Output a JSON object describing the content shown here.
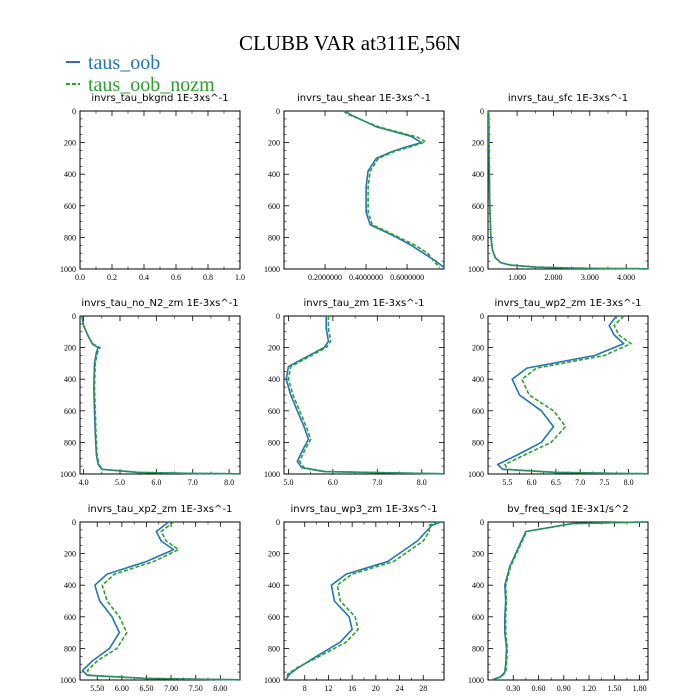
{
  "figure": {
    "title": "CLUBB VAR at311E,56N",
    "legend": [
      {
        "name": "taus_oob",
        "color": "#1f77b4"
      },
      {
        "name": "taus_oob_nozm",
        "color": "#2ca02c"
      }
    ],
    "line_style": [
      "solid",
      "dashed"
    ]
  },
  "chart_data": [
    {
      "type": "line",
      "title": "invrs_tau_bkgnd",
      "units": "1E-3xs^-1",
      "xlim": [
        0,
        1.0
      ],
      "ylim": [
        1000,
        0
      ],
      "xticks": [
        0.0,
        0.2,
        0.4,
        0.6,
        0.8,
        1.0
      ],
      "xtick_labels": [
        "0.0",
        "0.2",
        "0.4",
        "0.6",
        "0.8",
        "1.0"
      ],
      "yticks": [
        0,
        200,
        400,
        600,
        800,
        1000
      ],
      "ytick_labels": [
        "0",
        "200",
        "400",
        "600",
        "800",
        "1000"
      ],
      "series": []
    },
    {
      "type": "line",
      "title": "invrs_tau_shear",
      "units": "1E-3xs^-1",
      "xlim": [
        0,
        0.78
      ],
      "ylim": [
        1000,
        0
      ],
      "xticks": [
        0.2,
        0.4,
        0.6
      ],
      "xtick_labels": [
        "0.2000000",
        "0.4000000",
        "0.6000000"
      ],
      "yticks": [
        0,
        200,
        400,
        600,
        800,
        1000
      ],
      "ytick_labels": [
        "0",
        "200",
        "400",
        "600",
        "800",
        "1000"
      ],
      "series": [
        {
          "x": [
            0.3,
            0.32,
            0.45,
            0.62,
            0.67,
            0.59,
            0.52,
            0.45,
            0.41,
            0.4,
            0.4,
            0.4,
            0.41,
            0.42,
            0.47,
            0.55,
            0.62,
            0.68,
            0.74,
            0.78
          ],
          "y": [
            0,
            20,
            100,
            160,
            200,
            230,
            260,
            300,
            380,
            480,
            580,
            640,
            680,
            720,
            750,
            800,
            850,
            900,
            950,
            990
          ]
        },
        {
          "x": [
            0.29,
            0.31,
            0.46,
            0.65,
            0.69,
            0.62,
            0.54,
            0.46,
            0.42,
            0.41,
            0.41,
            0.41,
            0.42,
            0.43,
            0.48,
            0.56,
            0.64,
            0.7,
            0.73,
            0.76
          ],
          "y": [
            0,
            20,
            100,
            165,
            195,
            225,
            255,
            300,
            380,
            480,
            580,
            640,
            680,
            720,
            750,
            800,
            850,
            900,
            950,
            990
          ]
        }
      ]
    },
    {
      "type": "line",
      "title": "invrs_tau_sfc",
      "units": "1E-3xs^-1",
      "xlim": [
        0.2,
        4.6
      ],
      "ylim": [
        1000,
        0
      ],
      "xticks": [
        1.0,
        2.0,
        3.0,
        4.0
      ],
      "xtick_labels": [
        "1.000",
        "2.000",
        "3.000",
        "4.000"
      ],
      "yticks": [
        0,
        200,
        400,
        600,
        800,
        1000
      ],
      "ytick_labels": [
        "0",
        "200",
        "400",
        "600",
        "800",
        "1000"
      ],
      "series": [
        {
          "x": [
            0.22,
            0.23,
            0.25,
            0.28,
            0.32,
            0.4,
            0.55,
            0.8,
            1.5,
            2.5,
            3.5,
            4.6
          ],
          "y": [
            0,
            300,
            600,
            800,
            880,
            930,
            960,
            975,
            988,
            994,
            997,
            999
          ]
        },
        {
          "x": [
            0.22,
            0.23,
            0.25,
            0.28,
            0.33,
            0.41,
            0.56,
            0.82,
            1.5,
            2.5,
            3.5,
            4.6
          ],
          "y": [
            0,
            300,
            600,
            800,
            880,
            930,
            960,
            975,
            988,
            994,
            997,
            999
          ]
        }
      ]
    },
    {
      "type": "line",
      "title": "invrs_tau_no_N2_zm",
      "units": "1E-3xs^-1",
      "xlim": [
        3.9,
        8.3
      ],
      "ylim": [
        1000,
        0
      ],
      "xticks": [
        4.0,
        5.0,
        6.0,
        7.0,
        8.0
      ],
      "xtick_labels": [
        "4.0",
        "5.0",
        "6.0",
        "7.0",
        "8.0"
      ],
      "yticks": [
        0,
        200,
        400,
        600,
        800,
        1000
      ],
      "ytick_labels": [
        "0",
        "200",
        "400",
        "600",
        "800",
        "1000"
      ],
      "series": [
        {
          "x": [
            3.95,
            4.0,
            4.15,
            4.25,
            4.4,
            4.35,
            4.3,
            4.28,
            4.3,
            4.32,
            4.35,
            4.4,
            4.5,
            5.5,
            7.0,
            8.3
          ],
          "y": [
            0,
            60,
            140,
            180,
            200,
            230,
            300,
            450,
            600,
            750,
            880,
            940,
            970,
            990,
            996,
            999
          ]
        },
        {
          "x": [
            3.95,
            4.0,
            4.15,
            4.27,
            4.45,
            4.38,
            4.32,
            4.3,
            4.32,
            4.34,
            4.37,
            4.42,
            4.52,
            5.5,
            7.0,
            8.3
          ],
          "y": [
            0,
            60,
            140,
            180,
            200,
            230,
            300,
            450,
            600,
            750,
            880,
            940,
            970,
            990,
            996,
            999
          ]
        }
      ]
    },
    {
      "type": "line",
      "title": "invrs_tau_zm",
      "units": "1E-3xs^-1",
      "xlim": [
        4.9,
        8.5
      ],
      "ylim": [
        1000,
        0
      ],
      "xticks": [
        5.0,
        6.0,
        7.0,
        8.0
      ],
      "xtick_labels": [
        "5.0",
        "6.0",
        "7.0",
        "8.0"
      ],
      "yticks": [
        0,
        200,
        400,
        600,
        800,
        1000
      ],
      "ytick_labels": [
        "0",
        "200",
        "400",
        "600",
        "800",
        "1000"
      ],
      "series": [
        {
          "x": [
            5.85,
            5.85,
            5.9,
            5.8,
            5.4,
            5.0,
            4.95,
            5.05,
            5.2,
            5.35,
            5.45,
            5.3,
            5.2,
            5.3,
            5.8,
            8.5
          ],
          "y": [
            0,
            80,
            160,
            200,
            260,
            320,
            400,
            500,
            600,
            700,
            780,
            860,
            920,
            960,
            985,
            999
          ]
        },
        {
          "x": [
            5.9,
            5.9,
            5.95,
            5.85,
            5.45,
            5.05,
            5.0,
            5.1,
            5.25,
            5.4,
            5.5,
            5.35,
            5.25,
            5.35,
            5.85,
            8.5
          ],
          "y": [
            0,
            80,
            160,
            200,
            260,
            320,
            400,
            500,
            600,
            700,
            780,
            860,
            920,
            960,
            985,
            999
          ]
        }
      ]
    },
    {
      "type": "line",
      "title": "invrs_tau_wp2_zm",
      "units": "1E-3xs^-1",
      "xlim": [
        5.1,
        8.4
      ],
      "ylim": [
        1000,
        0
      ],
      "xticks": [
        5.5,
        6.0,
        6.5,
        7.0,
        7.5,
        8.0
      ],
      "xtick_labels": [
        "5.5",
        "6.0",
        "6.5",
        "7.0",
        "7.5",
        "8.0"
      ],
      "yticks": [
        0,
        200,
        400,
        600,
        800,
        1000
      ],
      "ytick_labels": [
        "0",
        "200",
        "400",
        "600",
        "800",
        "1000"
      ],
      "series": [
        {
          "x": [
            7.75,
            7.6,
            7.7,
            7.9,
            7.3,
            5.9,
            5.6,
            5.75,
            6.2,
            6.45,
            6.2,
            5.7,
            5.3,
            5.4,
            6.5,
            8.4
          ],
          "y": [
            0,
            60,
            120,
            175,
            250,
            330,
            400,
            500,
            600,
            700,
            800,
            880,
            940,
            970,
            990,
            999
          ]
        },
        {
          "x": [
            7.9,
            7.7,
            7.8,
            8.05,
            7.5,
            6.1,
            5.8,
            5.95,
            6.45,
            6.7,
            6.4,
            5.85,
            5.45,
            5.5,
            6.5,
            8.4
          ],
          "y": [
            0,
            60,
            120,
            175,
            250,
            330,
            400,
            500,
            600,
            700,
            800,
            880,
            940,
            970,
            990,
            999
          ]
        }
      ]
    },
    {
      "type": "line",
      "title": "invrs_tau_xp2_zm",
      "units": "1E-3xs^-1",
      "xlim": [
        5.15,
        8.4
      ],
      "ylim": [
        1000,
        0
      ],
      "xticks": [
        5.5,
        6.0,
        6.5,
        7.0,
        7.5,
        8.0
      ],
      "xtick_labels": [
        "5.50",
        "6.00",
        "6.50",
        "7.00",
        "7.50",
        "8.00"
      ],
      "yticks": [
        0,
        200,
        400,
        600,
        800,
        1000
      ],
      "ytick_labels": [
        "0",
        "200",
        "400",
        "600",
        "800",
        "1000"
      ],
      "series": [
        {
          "x": [
            6.95,
            6.7,
            6.8,
            7.05,
            6.5,
            5.7,
            5.45,
            5.55,
            5.8,
            5.95,
            5.75,
            5.4,
            5.2,
            5.3,
            6.5,
            8.4
          ],
          "y": [
            0,
            60,
            120,
            175,
            250,
            330,
            400,
            500,
            600,
            700,
            800,
            880,
            940,
            970,
            990,
            999
          ]
        },
        {
          "x": [
            7.05,
            6.8,
            6.9,
            7.15,
            6.65,
            5.85,
            5.6,
            5.7,
            5.95,
            6.1,
            5.9,
            5.5,
            5.3,
            5.35,
            6.5,
            8.4
          ],
          "y": [
            0,
            60,
            120,
            175,
            250,
            330,
            400,
            500,
            600,
            700,
            800,
            880,
            940,
            970,
            990,
            999
          ]
        }
      ]
    },
    {
      "type": "line",
      "title": "invrs_tau_wp3_zm",
      "units": "1E-3xs^-1",
      "xlim": [
        4.5,
        31.5
      ],
      "ylim": [
        1000,
        0
      ],
      "xticks": [
        8,
        12,
        16,
        20,
        24,
        28
      ],
      "xtick_labels": [
        "8",
        "12",
        "16",
        "20",
        "24",
        "28"
      ],
      "yticks": [
        0,
        200,
        400,
        600,
        800,
        1000
      ],
      "ytick_labels": [
        "0",
        "200",
        "400",
        "600",
        "800",
        "1000"
      ],
      "series": [
        {
          "x": [
            31.0,
            29.5,
            28.5,
            27.0,
            22.0,
            15.0,
            12.5,
            13.0,
            15.5,
            16.0,
            14.0,
            10.0,
            7.0,
            5.5,
            4.8
          ],
          "y": [
            0,
            20,
            60,
            120,
            250,
            330,
            400,
            500,
            600,
            680,
            760,
            850,
            920,
            960,
            999
          ]
        },
        {
          "x": [
            30.5,
            29.0,
            29.0,
            28.0,
            23.0,
            16.0,
            13.5,
            14.0,
            16.5,
            17.0,
            15.0,
            10.5,
            6.8,
            5.2,
            4.8
          ],
          "y": [
            0,
            20,
            60,
            120,
            250,
            330,
            400,
            500,
            600,
            680,
            760,
            850,
            920,
            960,
            999
          ]
        }
      ]
    },
    {
      "type": "line",
      "title": "bv_freq_sqd",
      "units": "1E-3x1/s^2",
      "xlim": [
        0.0,
        1.9
      ],
      "ylim": [
        1000,
        0
      ],
      "xticks": [
        0.3,
        0.6,
        0.9,
        1.2,
        1.5,
        1.8
      ],
      "xtick_labels": [
        "0.30",
        "0.60",
        "0.90",
        "1.20",
        "1.50",
        "1.80"
      ],
      "yticks": [
        0,
        200,
        400,
        600,
        800,
        1000
      ],
      "ytick_labels": [
        "0",
        "200",
        "400",
        "600",
        "800",
        "1000"
      ],
      "series": [
        {
          "x": [
            1.85,
            1.0,
            0.45,
            0.38,
            0.26,
            0.2,
            0.21,
            0.2,
            0.2,
            0.22,
            0.21,
            0.2,
            0.15,
            0.05
          ],
          "y": [
            0,
            10,
            60,
            140,
            280,
            400,
            500,
            600,
            700,
            800,
            900,
            950,
            980,
            999
          ]
        },
        {
          "x": [
            1.85,
            1.0,
            0.46,
            0.39,
            0.27,
            0.21,
            0.22,
            0.21,
            0.21,
            0.23,
            0.22,
            0.21,
            0.16,
            0.05
          ],
          "y": [
            0,
            10,
            60,
            140,
            280,
            400,
            500,
            600,
            700,
            800,
            900,
            950,
            980,
            999
          ]
        }
      ]
    }
  ]
}
